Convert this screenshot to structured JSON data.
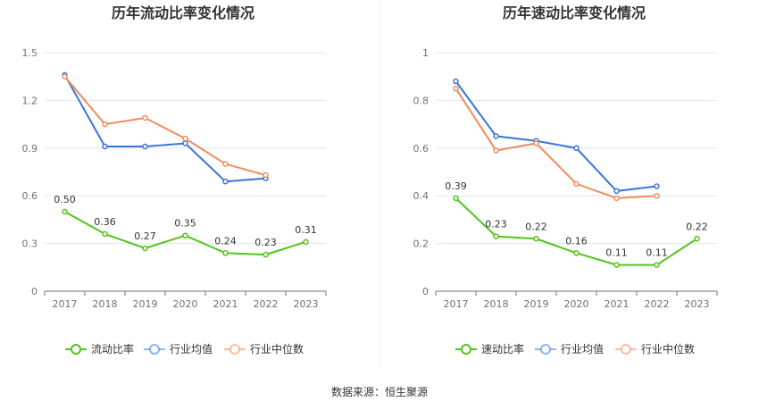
{
  "chart_data": [
    {
      "type": "line",
      "title": "历年流动比率变化情况",
      "categories": [
        "2017",
        "2018",
        "2019",
        "2020",
        "2021",
        "2022",
        "2023"
      ],
      "ylim": [
        0,
        1.5
      ],
      "yticks": [
        "0",
        "0.3",
        "0.6",
        "0.9",
        "1.2",
        "1.5"
      ],
      "grid": true,
      "legend": "bottom",
      "series": [
        {
          "name": "流动比率",
          "color": "#52c41a",
          "values": [
            0.5,
            0.36,
            0.27,
            0.35,
            0.24,
            0.23,
            0.31
          ],
          "labels": [
            "0.50",
            "0.36",
            "0.27",
            "0.35",
            "0.24",
            "0.23",
            "0.31"
          ]
        },
        {
          "name": "行业均值",
          "color": "#3a75d9",
          "values": [
            1.36,
            0.91,
            0.91,
            0.93,
            0.69,
            0.71,
            null
          ]
        },
        {
          "name": "行业中位数",
          "color": "#f08b5f",
          "values": [
            1.35,
            1.05,
            1.09,
            0.96,
            0.8,
            0.73,
            null
          ]
        }
      ]
    },
    {
      "type": "line",
      "title": "历年速动比率变化情况",
      "categories": [
        "2017",
        "2018",
        "2019",
        "2020",
        "2021",
        "2022",
        "2023"
      ],
      "ylim": [
        0,
        1
      ],
      "yticks": [
        "0",
        "0.2",
        "0.4",
        "0.6",
        "0.8",
        "1"
      ],
      "grid": true,
      "legend": "bottom",
      "series": [
        {
          "name": "速动比率",
          "color": "#52c41a",
          "values": [
            0.39,
            0.23,
            0.22,
            0.16,
            0.11,
            0.11,
            0.22
          ],
          "labels": [
            "0.39",
            "0.23",
            "0.22",
            "0.16",
            "0.11",
            "0.11",
            "0.22"
          ]
        },
        {
          "name": "行业均值",
          "color": "#3a75d9",
          "values": [
            0.88,
            0.65,
            0.63,
            0.6,
            0.42,
            0.44,
            null
          ]
        },
        {
          "name": "行业中位数",
          "color": "#f08b5f",
          "values": [
            0.85,
            0.59,
            0.62,
            0.45,
            0.39,
            0.4,
            null
          ]
        }
      ]
    }
  ],
  "source": "数据来源：恒生聚源"
}
